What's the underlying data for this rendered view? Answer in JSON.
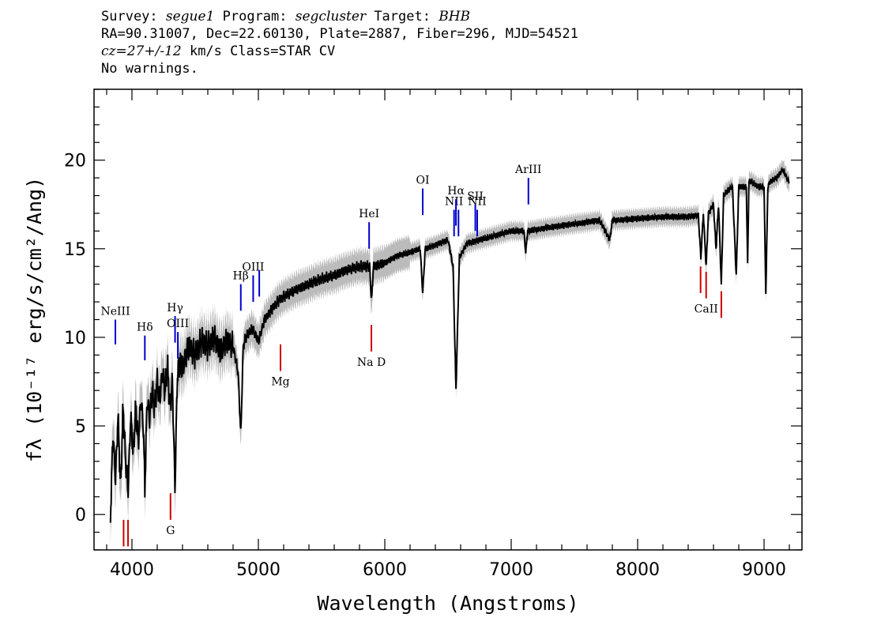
{
  "header": {
    "line1": {
      "survey_label": "Survey: ",
      "survey": "segue1",
      "program_label": " Program: ",
      "program": "segcluster",
      "target_label": " Target: ",
      "target": "BHB"
    },
    "line2": "RA=90.31007, Dec=22.60130, Plate=2887, Fiber=296, MJD=54521",
    "line3": {
      "cz_label": "cz",
      "cz_value": "=27+/-12",
      "cz_rest": " km/s Class=STAR CV"
    },
    "line4": "No warnings."
  },
  "chart_data": {
    "type": "line",
    "xlabel": "Wavelength (Angstroms)",
    "ylabel": "fλ (10⁻¹⁷ erg/s/cm²/Ang)",
    "xlim": [
      3700,
      9300
    ],
    "ylim": [
      -2,
      24
    ],
    "x_ticks": [
      4000,
      5000,
      6000,
      7000,
      8000,
      9000
    ],
    "y_ticks": [
      0,
      5,
      10,
      15,
      20
    ],
    "x_ticks_minor_step": 200,
    "y_ticks_minor_step": 1,
    "colors": {
      "spectrum": "#000000",
      "error": "#bbbbbb",
      "emission": "#0000cc",
      "absorption": "#cc0000"
    },
    "series": [
      {
        "name": "",
        "x": [
          3830,
          3850,
          3870,
          3890,
          3910,
          3930,
          3950,
          3970,
          3990,
          4010,
          4030,
          4050,
          4070,
          4090,
          4102,
          4120,
          4140,
          4160,
          4180,
          4200,
          4220,
          4240,
          4260,
          4280,
          4300,
          4320,
          4340,
          4360,
          4380,
          4400,
          4450,
          4500,
          4550,
          4600,
          4650,
          4700,
          4750,
          4800,
          4840,
          4861,
          4880,
          4900,
          4950,
          5000,
          5050,
          5100,
          5150,
          5200,
          5300,
          5400,
          5500,
          5600,
          5700,
          5800,
          5880,
          5895,
          5910,
          6000,
          6100,
          6200,
          6280,
          6300,
          6320,
          6400,
          6500,
          6540,
          6563,
          6590,
          6650,
          6750,
          6900,
          7000,
          7100,
          7115,
          7130,
          7300,
          7500,
          7700,
          7780,
          7800,
          8000,
          8200,
          8400,
          8480,
          8500,
          8520,
          8542,
          8560,
          8600,
          8620,
          8640,
          8662,
          8680,
          8700,
          8750,
          8780,
          8800,
          8860,
          8870,
          8880,
          8900,
          8950,
          9000,
          9014,
          9030,
          9050,
          9100,
          9150,
          9180,
          9200
        ],
        "y": [
          0.0,
          4.5,
          2.0,
          5.5,
          1.5,
          6.0,
          3.0,
          1.5,
          5.5,
          3.5,
          6.0,
          4.0,
          6.5,
          5.0,
          1.5,
          6.5,
          5.5,
          7.0,
          6.0,
          7.5,
          6.5,
          8.0,
          7.0,
          8.5,
          6.0,
          7.5,
          1.5,
          8.0,
          8.5,
          8.3,
          9.5,
          9.0,
          9.8,
          9.5,
          10.0,
          9.2,
          9.8,
          9.5,
          8.0,
          4.5,
          9.5,
          10.0,
          10.5,
          9.8,
          11.0,
          11.5,
          12.0,
          12.3,
          12.7,
          13.0,
          13.3,
          13.5,
          13.8,
          14.0,
          14.0,
          12.0,
          14.0,
          14.2,
          14.6,
          14.8,
          15.0,
          12.5,
          15.0,
          15.2,
          15.5,
          14.0,
          7.0,
          14.5,
          15.3,
          15.5,
          15.8,
          16.0,
          16.0,
          14.8,
          16.0,
          16.2,
          16.4,
          16.6,
          15.5,
          16.6,
          16.7,
          16.8,
          16.8,
          16.9,
          14.5,
          17.0,
          14.0,
          17.0,
          17.5,
          15.0,
          17.5,
          13.0,
          18.0,
          18.2,
          18.5,
          13.5,
          18.5,
          18.5,
          14.0,
          18.8,
          18.8,
          18.5,
          18.5,
          12.5,
          18.5,
          18.8,
          19.0,
          19.5,
          19.0,
          18.7
        ]
      }
    ],
    "emission_lines": [
      {
        "label": "NeIII",
        "x": 3869,
        "y_top": 11.0,
        "y_bottom": 9.6
      },
      {
        "label": "Hδ",
        "x": 4102,
        "y_top": 10.1,
        "y_bottom": 8.7
      },
      {
        "label": "Hγ",
        "x": 4341,
        "y_top": 11.2,
        "y_bottom": 9.7
      },
      {
        "label": "OIII",
        "x": 4363,
        "y_top": 10.3,
        "y_bottom": 8.8
      },
      {
        "label": "Hβ",
        "x": 4861,
        "y_top": 13.0,
        "y_bottom": 11.5
      },
      {
        "label": "OIII",
        "x": 4959,
        "y_top": 13.5,
        "y_bottom": 12.0
      },
      {
        "label": "",
        "x": 5007,
        "y_top": 13.8,
        "y_bottom": 12.3
      },
      {
        "label": "HeI",
        "x": 5876,
        "y_top": 16.5,
        "y_bottom": 15.0
      },
      {
        "label": "OI",
        "x": 6300,
        "y_top": 18.4,
        "y_bottom": 16.9
      },
      {
        "label": "NII",
        "x": 6548,
        "y_top": 17.2,
        "y_bottom": 15.7
      },
      {
        "label": "Hα",
        "x": 6563,
        "y_top": 17.8,
        "y_bottom": 16.3
      },
      {
        "label": "",
        "x": 6583,
        "y_top": 17.2,
        "y_bottom": 15.7
      },
      {
        "label": "SII",
        "x": 6716,
        "y_top": 17.5,
        "y_bottom": 16.0
      },
      {
        "label": "NII",
        "x": 6731,
        "y_top": 17.2,
        "y_bottom": 15.7
      },
      {
        "label": "ArIII",
        "x": 7136,
        "y_top": 19.0,
        "y_bottom": 17.5
      }
    ],
    "absorption_lines": [
      {
        "label": "",
        "x": 3934,
        "y_top": -0.3,
        "y_bottom": -1.8
      },
      {
        "label": "",
        "x": 3969,
        "y_top": -0.3,
        "y_bottom": -1.8
      },
      {
        "label": "G",
        "x": 4305,
        "y_top": 1.2,
        "y_bottom": -0.3
      },
      {
        "label": "Mg",
        "x": 5175,
        "y_top": 9.6,
        "y_bottom": 8.1
      },
      {
        "label": "Na D",
        "x": 5894,
        "y_top": 10.7,
        "y_bottom": 9.2
      },
      {
        "label": "",
        "x": 8498,
        "y_top": 14.0,
        "y_bottom": 12.5
      },
      {
        "label": "CaII",
        "x": 8542,
        "y_top": 13.7,
        "y_bottom": 12.2
      },
      {
        "label": "",
        "x": 8662,
        "y_top": 12.6,
        "y_bottom": 11.1
      }
    ]
  }
}
